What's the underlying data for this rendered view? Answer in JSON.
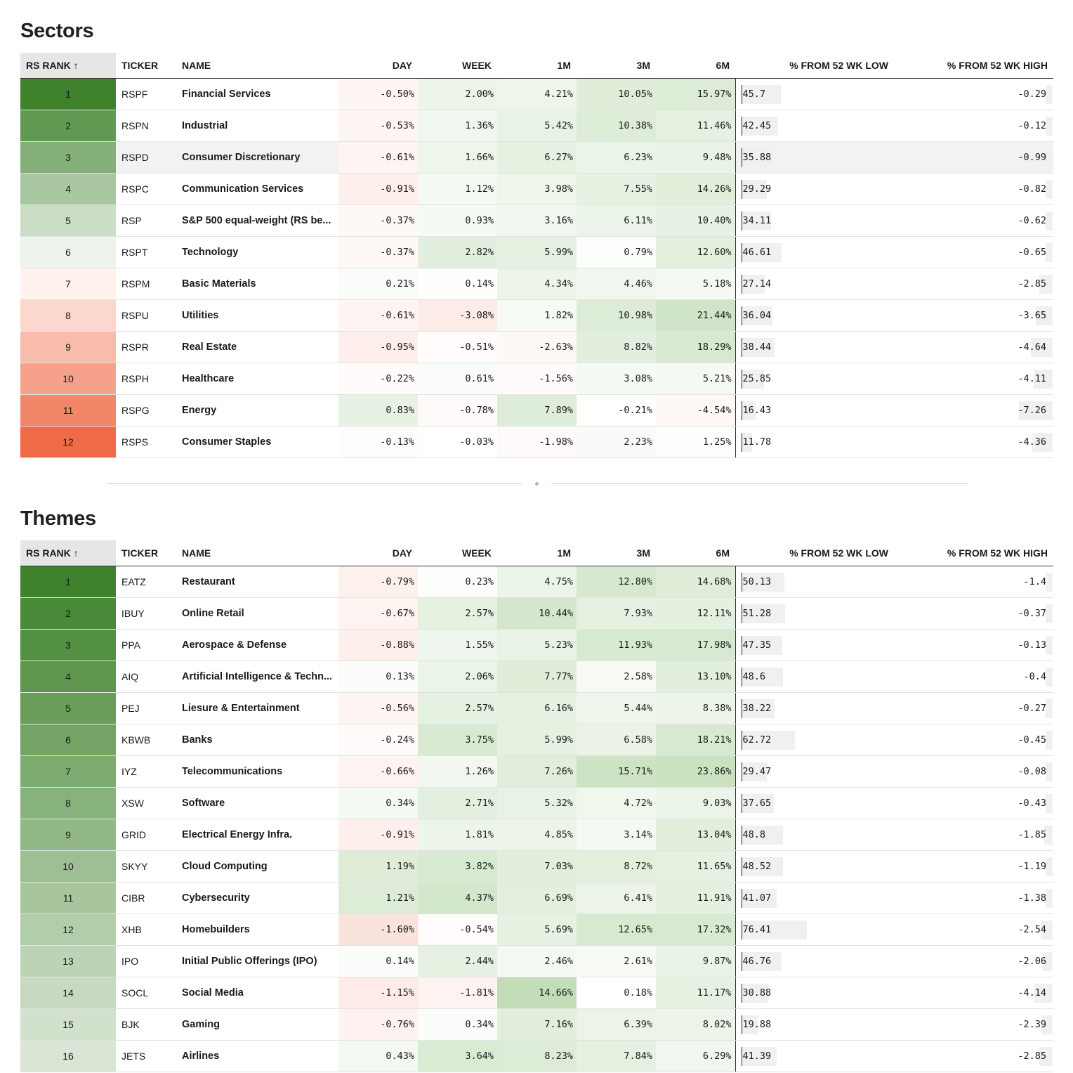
{
  "columns": {
    "rank": "RS RANK ↑",
    "ticker": "TICKER",
    "name": "NAME",
    "day": "DAY",
    "week": "WEEK",
    "m1": "1M",
    "m3": "3M",
    "m6": "6M",
    "low": "% FROM 52 WK LOW",
    "high": "% FROM 52 WK HIGH"
  },
  "sectors": {
    "title": "Sectors",
    "highlighted_rank": 3,
    "rows": [
      {
        "rank": "1",
        "ticker": "RSPF",
        "name": "Financial Services",
        "day": "-0.50%",
        "week": "2.00%",
        "m1": "4.21%",
        "m3": "10.05%",
        "m6": "15.97%",
        "low": "45.7",
        "high": "-0.29"
      },
      {
        "rank": "2",
        "ticker": "RSPN",
        "name": "Industrial",
        "day": "-0.53%",
        "week": "1.36%",
        "m1": "5.42%",
        "m3": "10.38%",
        "m6": "11.46%",
        "low": "42.45",
        "high": "-0.12"
      },
      {
        "rank": "3",
        "ticker": "RSPD",
        "name": "Consumer Discretionary",
        "day": "-0.61%",
        "week": "1.66%",
        "m1": "6.27%",
        "m3": "6.23%",
        "m6": "9.48%",
        "low": "35.88",
        "high": "-0.99"
      },
      {
        "rank": "4",
        "ticker": "RSPC",
        "name": "Communication Services",
        "day": "-0.91%",
        "week": "1.12%",
        "m1": "3.98%",
        "m3": "7.55%",
        "m6": "14.26%",
        "low": "29.29",
        "high": "-0.82"
      },
      {
        "rank": "5",
        "ticker": "RSP",
        "name": "S&P 500 equal-weight (RS be...",
        "day": "-0.37%",
        "week": "0.93%",
        "m1": "3.16%",
        "m3": "6.11%",
        "m6": "10.40%",
        "low": "34.11",
        "high": "-0.62"
      },
      {
        "rank": "6",
        "ticker": "RSPT",
        "name": "Technology",
        "day": "-0.37%",
        "week": "2.82%",
        "m1": "5.99%",
        "m3": "0.79%",
        "m6": "12.60%",
        "low": "46.61",
        "high": "-0.65"
      },
      {
        "rank": "7",
        "ticker": "RSPM",
        "name": "Basic Materials",
        "day": "0.21%",
        "week": "0.14%",
        "m1": "4.34%",
        "m3": "4.46%",
        "m6": "5.18%",
        "low": "27.14",
        "high": "-2.85"
      },
      {
        "rank": "8",
        "ticker": "RSPU",
        "name": "Utilities",
        "day": "-0.61%",
        "week": "-3.08%",
        "m1": "1.82%",
        "m3": "10.98%",
        "m6": "21.44%",
        "low": "36.04",
        "high": "-3.65"
      },
      {
        "rank": "9",
        "ticker": "RSPR",
        "name": "Real Estate",
        "day": "-0.95%",
        "week": "-0.51%",
        "m1": "-2.63%",
        "m3": "8.82%",
        "m6": "18.29%",
        "low": "38.44",
        "high": "-4.64"
      },
      {
        "rank": "10",
        "ticker": "RSPH",
        "name": "Healthcare",
        "day": "-0.22%",
        "week": "0.61%",
        "m1": "-1.56%",
        "m3": "3.08%",
        "m6": "5.21%",
        "low": "25.85",
        "high": "-4.11"
      },
      {
        "rank": "11",
        "ticker": "RSPG",
        "name": "Energy",
        "day": "0.83%",
        "week": "-0.78%",
        "m1": "7.89%",
        "m3": "-0.21%",
        "m6": "-4.54%",
        "low": "16.43",
        "high": "-7.26"
      },
      {
        "rank": "12",
        "ticker": "RSPS",
        "name": "Consumer Staples",
        "day": "-0.13%",
        "week": "-0.03%",
        "m1": "-1.98%",
        "m3": "2.23%",
        "m6": "1.25%",
        "low": "11.78",
        "high": "-4.36"
      }
    ]
  },
  "themes": {
    "title": "Themes",
    "rows": [
      {
        "rank": "1",
        "ticker": "EATZ",
        "name": "Restaurant",
        "day": "-0.79%",
        "week": "0.23%",
        "m1": "4.75%",
        "m3": "12.80%",
        "m6": "14.68%",
        "low": "50.13",
        "high": "-1.4"
      },
      {
        "rank": "2",
        "ticker": "IBUY",
        "name": "Online Retail",
        "day": "-0.67%",
        "week": "2.57%",
        "m1": "10.44%",
        "m3": "7.93%",
        "m6": "12.11%",
        "low": "51.28",
        "high": "-0.37"
      },
      {
        "rank": "3",
        "ticker": "PPA",
        "name": "Aerospace & Defense",
        "day": "-0.88%",
        "week": "1.55%",
        "m1": "5.23%",
        "m3": "11.93%",
        "m6": "17.98%",
        "low": "47.35",
        "high": "-0.13"
      },
      {
        "rank": "4",
        "ticker": "AIQ",
        "name": "Artificial Intelligence & Techn...",
        "day": "0.13%",
        "week": "2.06%",
        "m1": "7.77%",
        "m3": "2.58%",
        "m6": "13.10%",
        "low": "48.6",
        "high": "-0.4"
      },
      {
        "rank": "5",
        "ticker": "PEJ",
        "name": "Liesure & Entertainment",
        "day": "-0.56%",
        "week": "2.57%",
        "m1": "6.16%",
        "m3": "5.44%",
        "m6": "8.38%",
        "low": "38.22",
        "high": "-0.27"
      },
      {
        "rank": "6",
        "ticker": "KBWB",
        "name": "Banks",
        "day": "-0.24%",
        "week": "3.75%",
        "m1": "5.99%",
        "m3": "6.58%",
        "m6": "18.21%",
        "low": "62.72",
        "high": "-0.45"
      },
      {
        "rank": "7",
        "ticker": "IYZ",
        "name": "Telecommunications",
        "day": "-0.66%",
        "week": "1.26%",
        "m1": "7.26%",
        "m3": "15.71%",
        "m6": "23.86%",
        "low": "29.47",
        "high": "-0.08"
      },
      {
        "rank": "8",
        "ticker": "XSW",
        "name": "Software",
        "day": "0.34%",
        "week": "2.71%",
        "m1": "5.32%",
        "m3": "4.72%",
        "m6": "9.03%",
        "low": "37.65",
        "high": "-0.43"
      },
      {
        "rank": "9",
        "ticker": "GRID",
        "name": "Electrical Energy Infra.",
        "day": "-0.91%",
        "week": "1.81%",
        "m1": "4.85%",
        "m3": "3.14%",
        "m6": "13.04%",
        "low": "48.8",
        "high": "-1.85"
      },
      {
        "rank": "10",
        "ticker": "SKYY",
        "name": "Cloud Computing",
        "day": "1.19%",
        "week": "3.82%",
        "m1": "7.03%",
        "m3": "8.72%",
        "m6": "11.65%",
        "low": "48.52",
        "high": "-1.19"
      },
      {
        "rank": "11",
        "ticker": "CIBR",
        "name": "Cybersecurity",
        "day": "1.21%",
        "week": "4.37%",
        "m1": "6.69%",
        "m3": "6.41%",
        "m6": "11.91%",
        "low": "41.07",
        "high": "-1.38"
      },
      {
        "rank": "12",
        "ticker": "XHB",
        "name": "Homebuilders",
        "day": "-1.60%",
        "week": "-0.54%",
        "m1": "5.69%",
        "m3": "12.65%",
        "m6": "17.32%",
        "low": "76.41",
        "high": "-2.54"
      },
      {
        "rank": "13",
        "ticker": "IPO",
        "name": "Initial Public Offerings (IPO)",
        "day": "0.14%",
        "week": "2.44%",
        "m1": "2.46%",
        "m3": "2.61%",
        "m6": "9.87%",
        "low": "46.76",
        "high": "-2.06"
      },
      {
        "rank": "14",
        "ticker": "SOCL",
        "name": "Social Media",
        "day": "-1.15%",
        "week": "-1.81%",
        "m1": "14.66%",
        "m3": "0.18%",
        "m6": "11.17%",
        "low": "30.88",
        "high": "-4.14"
      },
      {
        "rank": "15",
        "ticker": "BJK",
        "name": "Gaming",
        "day": "-0.76%",
        "week": "0.34%",
        "m1": "7.16%",
        "m3": "6.39%",
        "m6": "8.02%",
        "low": "19.88",
        "high": "-2.39"
      },
      {
        "rank": "16",
        "ticker": "JETS",
        "name": "Airlines",
        "day": "0.43%",
        "week": "3.64%",
        "m1": "8.23%",
        "m3": "7.84%",
        "m6": "6.29%",
        "low": "41.39",
        "high": "-2.85"
      }
    ]
  },
  "colors": {
    "rank_green_dark": "#3f822b",
    "rank_red_dark": "#ef6b48",
    "cell_green": "#b5d6a8",
    "cell_red": "#f9d3ca",
    "bar_gray": "#f0f0f0"
  }
}
